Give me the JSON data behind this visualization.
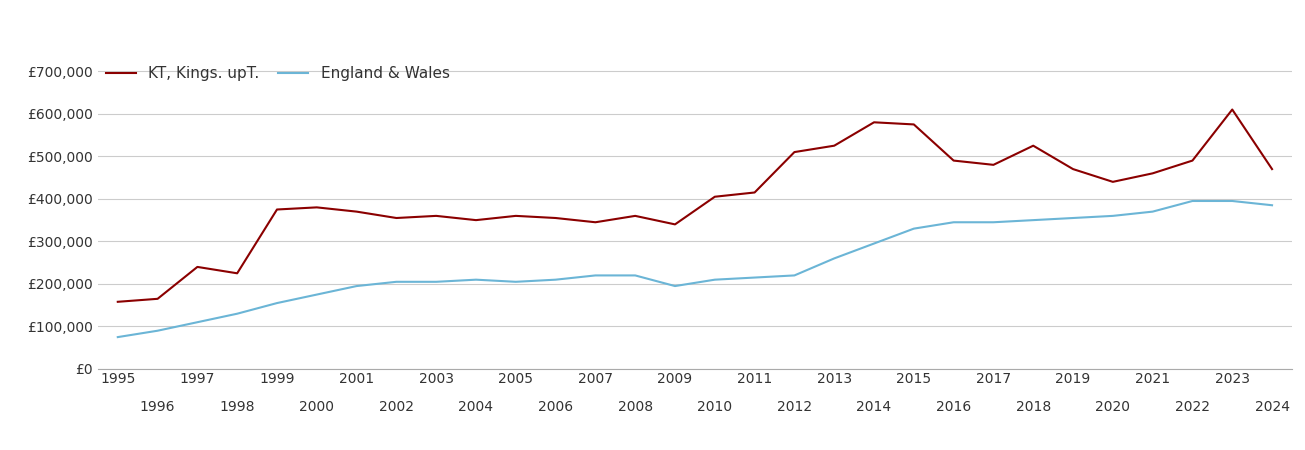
{
  "kt_years": [
    1995,
    1996,
    1997,
    1998,
    1999,
    2000,
    2001,
    2002,
    2003,
    2004,
    2005,
    2006,
    2007,
    2008,
    2009,
    2010,
    2011,
    2012,
    2013,
    2014,
    2015,
    2016,
    2017,
    2018,
    2019,
    2020,
    2021,
    2022,
    2023,
    2024
  ],
  "kt_values": [
    158000,
    165000,
    240000,
    225000,
    375000,
    380000,
    370000,
    355000,
    360000,
    350000,
    360000,
    355000,
    345000,
    360000,
    340000,
    405000,
    415000,
    510000,
    525000,
    580000,
    575000,
    490000,
    480000,
    525000,
    470000,
    440000,
    460000,
    490000,
    610000,
    470000
  ],
  "ew_years": [
    1995,
    1996,
    1997,
    1998,
    1999,
    2000,
    2001,
    2002,
    2003,
    2004,
    2005,
    2006,
    2007,
    2008,
    2009,
    2010,
    2011,
    2012,
    2013,
    2014,
    2015,
    2016,
    2017,
    2018,
    2019,
    2020,
    2021,
    2022,
    2023,
    2024
  ],
  "ew_values": [
    75000,
    90000,
    110000,
    130000,
    155000,
    175000,
    195000,
    205000,
    205000,
    210000,
    205000,
    210000,
    220000,
    220000,
    195000,
    210000,
    215000,
    220000,
    260000,
    295000,
    330000,
    345000,
    345000,
    350000,
    355000,
    360000,
    370000,
    395000,
    395000,
    385000
  ],
  "kt_color": "#8B0000",
  "ew_color": "#6BB5D6",
  "kt_label": "KT, Kings. upT.",
  "ew_label": "England & Wales",
  "ylim": [
    0,
    730000
  ],
  "yticks": [
    0,
    100000,
    200000,
    300000,
    400000,
    500000,
    600000,
    700000
  ],
  "ytick_labels": [
    "£0",
    "£100,000",
    "£200,000",
    "£300,000",
    "£400,000",
    "£500,000",
    "£600,000",
    "£700,000"
  ],
  "xticks_row1": [
    1995,
    1997,
    1999,
    2001,
    2003,
    2005,
    2007,
    2009,
    2011,
    2013,
    2015,
    2017,
    2019,
    2021,
    2023
  ],
  "xticks_row2": [
    1996,
    1998,
    2000,
    2002,
    2004,
    2006,
    2008,
    2010,
    2012,
    2014,
    2016,
    2018,
    2020,
    2022,
    2024
  ],
  "background_color": "#ffffff",
  "grid_color": "#cccccc",
  "line_width": 1.5,
  "legend_fontsize": 11,
  "tick_fontsize": 10,
  "xlim_left": 1994.5,
  "xlim_right": 2024.5
}
